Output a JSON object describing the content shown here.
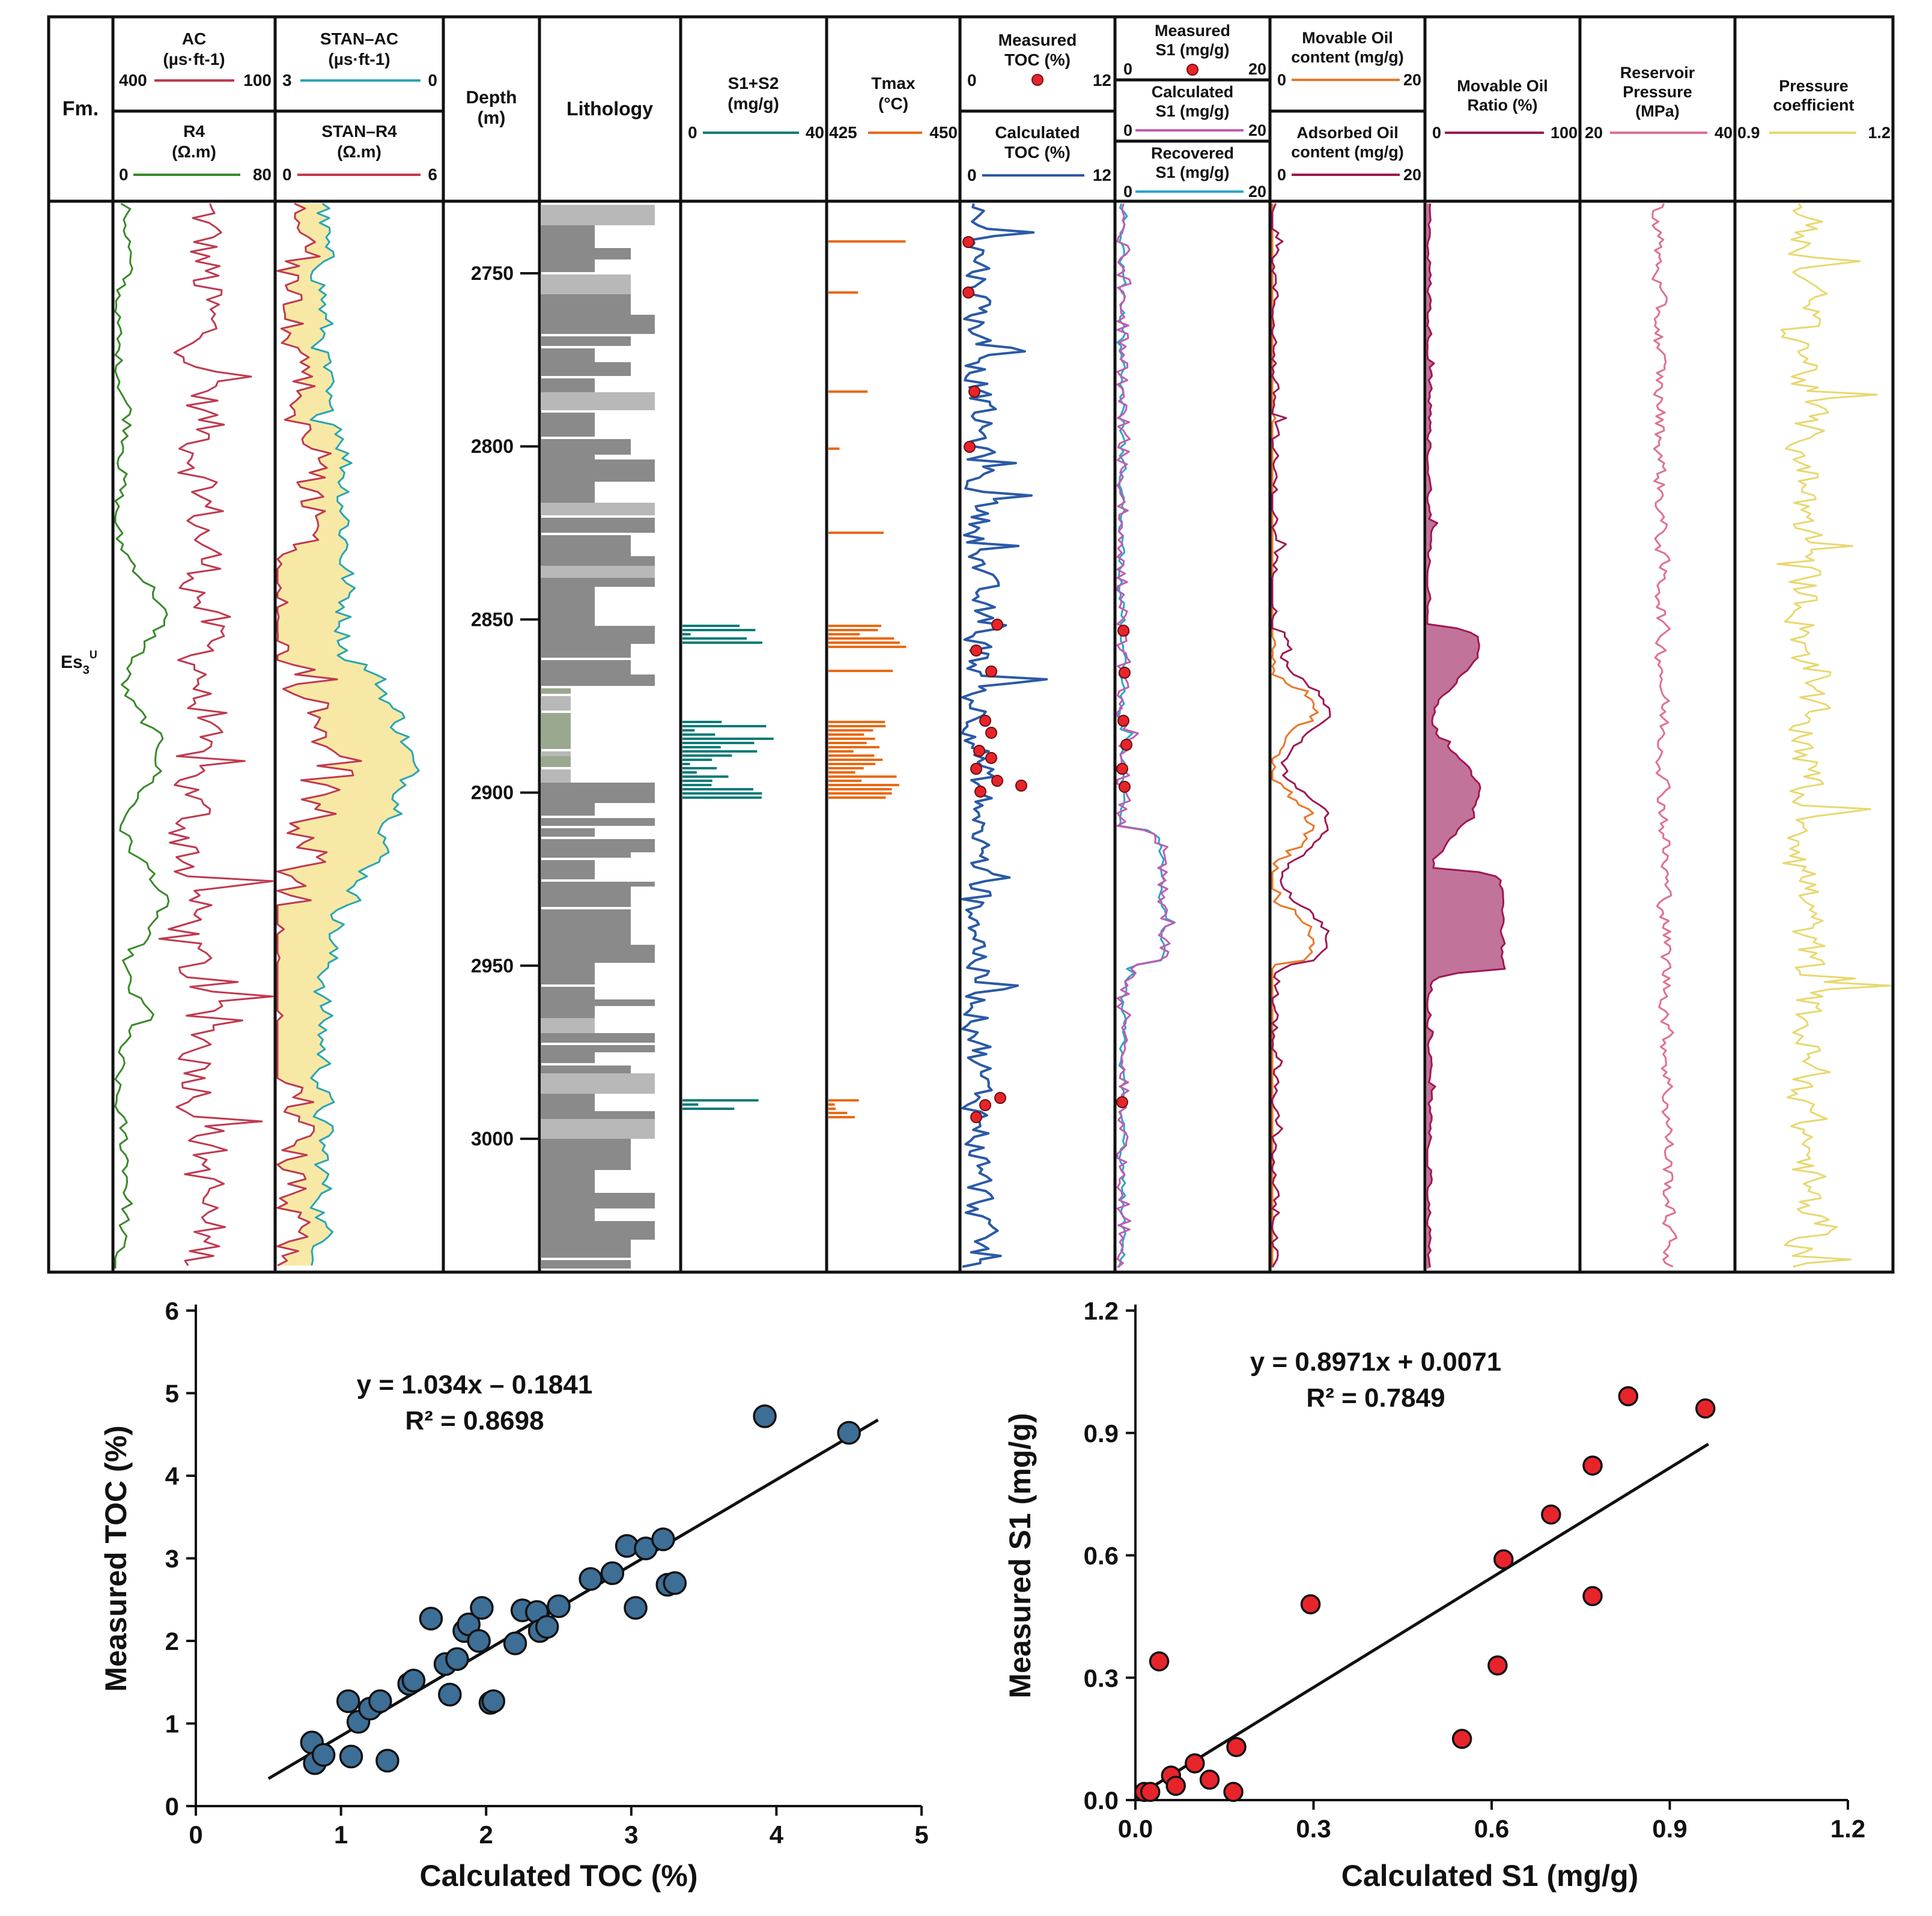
{
  "log_panel": {
    "formation_header": "Fm.",
    "formation_name": "Es",
    "formation_sub": "3",
    "formation_sup": "U",
    "depth_header": "Depth",
    "depth_unit": "(m)",
    "depth_ticks": [
      "2750",
      "2800",
      "2850",
      "2900",
      "2950",
      "3000"
    ],
    "depth_range": [
      2730,
      3040
    ],
    "lithology_header": "Lithology",
    "colors": {
      "ac": "#c0394f",
      "r4": "#3a8a2a",
      "stan_ac": "#2aa5b5",
      "stan_r4": "#c0394f",
      "fill_yellow": "#f7e9a5",
      "s1s2": "#0c7c78",
      "tmax": "#ea6a14",
      "toc": "#2b5aa6",
      "measured_dot": "#e8242b",
      "calc_s1": "#c05cb0",
      "rec_s1": "#2aa5c8",
      "movable": "#e8782a",
      "adsorbed": "#a01852",
      "ratio": "#a01852",
      "ratio_fill": "#c27399",
      "pressure": "#e07090",
      "coef": "#e8d870",
      "lith_dark": "#8a8a8a",
      "lith_light": "#b8b8b8",
      "lith_green": "#9aa890"
    },
    "tracks": {
      "ac": {
        "title": "AC",
        "unit": "(µs·ft-1)",
        "min": "400",
        "max": "100"
      },
      "r4": {
        "title": "R4",
        "unit": "(Ω.m)",
        "min": "0",
        "max": "80"
      },
      "stan_ac": {
        "title": "STAN–AC",
        "unit": "(µs·ft-1)",
        "min": "3",
        "max": "0"
      },
      "stan_r4": {
        "title": "STAN–R4",
        "unit": "(Ω.m)",
        "min": "0",
        "max": "6"
      },
      "s1s2": {
        "title": "S1+S2",
        "unit": "(mg/g)",
        "min": "0",
        "max": "40"
      },
      "tmax": {
        "title": "Tmax",
        "unit": "(°C)",
        "min": "425",
        "max": "450"
      },
      "measured_toc": {
        "title_1": "Measured",
        "title_2": "TOC  (%)",
        "min": "0",
        "max": "12"
      },
      "calculated_toc": {
        "title_1": "Calculated",
        "title_2": "TOC  (%)",
        "min": "0",
        "max": "12"
      },
      "measured_s1": {
        "title_1": "Measured",
        "title_2": "S1  (mg/g)",
        "min": "0",
        "max": "20"
      },
      "calculated_s1": {
        "title_1": "Calculated",
        "title_2": "S1  (mg/g)",
        "min": "0",
        "max": "20"
      },
      "recovered_s1": {
        "title_1": "Recovered",
        "title_2": "S1  (mg/g)",
        "min": "0",
        "max": "20"
      },
      "movable_oil": {
        "title_1": "Movable  Oil",
        "title_2": "content  (mg/g)",
        "min": "0",
        "max": "20"
      },
      "adsorbed_oil": {
        "title_1": "Adsorbed  Oil",
        "title_2": "content  (mg/g)",
        "min": "0",
        "max": "20"
      },
      "movable_ratio": {
        "title_1": "Movable  Oil",
        "title_2": "Ratio  (%)",
        "min": "0",
        "max": "100"
      },
      "reservoir_pressure": {
        "title_1": "Reservoir",
        "title_2": "Pressure",
        "title_3": "(MPa)",
        "min": "20",
        "max": "40"
      },
      "pressure_coefficient": {
        "title_1": "Pressure",
        "title_2": "coefficient",
        "min": "0.9",
        "max": "1.2"
      }
    }
  },
  "chart_data": [
    {
      "type": "scatter",
      "title": "",
      "xlabel": "Calculated TOC  (%)",
      "ylabel": "Measured TOC (%)",
      "xlim": [
        0,
        5
      ],
      "ylim": [
        0,
        6
      ],
      "xticks": [
        "0",
        "1",
        "2",
        "3",
        "4",
        "5"
      ],
      "yticks": [
        "0",
        "1",
        "2",
        "3",
        "4",
        "5",
        "6"
      ],
      "equation": "y = 1.034x – 0.1841",
      "r2": "R² = 0.8698",
      "fit": {
        "slope": 1.034,
        "intercept": -0.1841,
        "x_range": [
          0.5,
          4.7
        ]
      },
      "marker_color": "#3d6e95",
      "points": [
        [
          0.8,
          0.77
        ],
        [
          0.82,
          0.52
        ],
        [
          0.88,
          0.62
        ],
        [
          1.05,
          1.27
        ],
        [
          1.07,
          0.6
        ],
        [
          1.12,
          1.02
        ],
        [
          1.2,
          1.18
        ],
        [
          1.27,
          1.27
        ],
        [
          1.32,
          0.55
        ],
        [
          1.47,
          1.48
        ],
        [
          1.5,
          1.52
        ],
        [
          1.62,
          2.27
        ],
        [
          1.72,
          1.72
        ],
        [
          1.75,
          1.35
        ],
        [
          1.8,
          1.78
        ],
        [
          1.85,
          2.12
        ],
        [
          1.88,
          2.2
        ],
        [
          1.95,
          2.0
        ],
        [
          1.97,
          2.4
        ],
        [
          2.03,
          1.25
        ],
        [
          2.05,
          1.27
        ],
        [
          2.2,
          1.97
        ],
        [
          2.25,
          2.37
        ],
        [
          2.35,
          2.35
        ],
        [
          2.37,
          2.12
        ],
        [
          2.42,
          2.17
        ],
        [
          2.5,
          2.42
        ],
        [
          2.72,
          2.75
        ],
        [
          2.87,
          2.82
        ],
        [
          2.97,
          3.15
        ],
        [
          3.03,
          2.4
        ],
        [
          3.1,
          3.12
        ],
        [
          3.22,
          3.23
        ],
        [
          3.25,
          2.68
        ],
        [
          3.3,
          2.7
        ],
        [
          3.92,
          4.72
        ],
        [
          4.5,
          4.52
        ]
      ]
    },
    {
      "type": "scatter",
      "title": "",
      "xlabel": "Calculated S1 (mg/g)",
      "ylabel": "Measured S1 (mg/g)",
      "xlim": [
        0,
        1.2
      ],
      "ylim": [
        0,
        1.2
      ],
      "xticks": [
        "0.0",
        "0.3",
        "0.6",
        "0.9",
        "1.2"
      ],
      "yticks": [
        "0.0",
        "0.3",
        "0.6",
        "0.9",
        "1.2"
      ],
      "equation": "y = 0.8971x + 0.0071",
      "r2": "R² = 0.7849",
      "fit": {
        "slope": 0.8971,
        "intercept": 0.0071,
        "x_range": [
          0.0,
          0.965
        ]
      },
      "marker_color": "#e8242b",
      "points": [
        [
          0.015,
          0.02
        ],
        [
          0.025,
          0.02
        ],
        [
          0.04,
          0.34
        ],
        [
          0.06,
          0.06
        ],
        [
          0.068,
          0.035
        ],
        [
          0.1,
          0.09
        ],
        [
          0.125,
          0.05
        ],
        [
          0.165,
          0.02
        ],
        [
          0.17,
          0.13
        ],
        [
          0.295,
          0.48
        ],
        [
          0.55,
          0.15
        ],
        [
          0.61,
          0.33
        ],
        [
          0.62,
          0.59
        ],
        [
          0.7,
          0.7
        ],
        [
          0.77,
          0.82
        ],
        [
          0.77,
          0.5
        ],
        [
          0.83,
          0.99
        ],
        [
          0.96,
          0.96
        ]
      ]
    }
  ]
}
